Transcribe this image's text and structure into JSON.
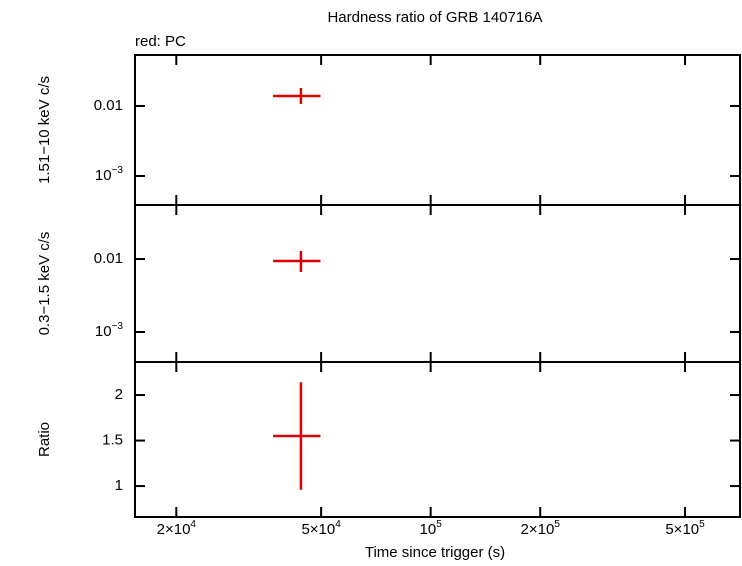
{
  "chart_data": [
    {
      "type": "errorbar",
      "title": "Hardness ratio of GRB 140716A",
      "annotation": "red: PC",
      "ylabel": "1.51−10 keV c/s",
      "yscale": "log",
      "ylim": [
        0.000385,
        0.0535
      ],
      "yticks": [
        {
          "value": 0.01,
          "label": "0.01"
        },
        {
          "value": 0.001,
          "label": "10",
          "exponent": "−3"
        }
      ],
      "series": [
        {
          "color": "#e00000",
          "x": [
            44000
          ],
          "x_low": [
            36900
          ],
          "x_high": [
            49800
          ],
          "values": [
            0.0139
          ],
          "y_low": [
            0.0107
          ],
          "y_high": [
            0.0181
          ]
        }
      ]
    },
    {
      "type": "errorbar",
      "ylabel": "0.3−1.5 keV c/s",
      "yscale": "log",
      "ylim": [
        0.000388,
        0.055
      ],
      "yticks": [
        {
          "value": 0.01,
          "label": "0.01"
        },
        {
          "value": 0.001,
          "label": "10",
          "exponent": "−3"
        }
      ],
      "series": [
        {
          "color": "#e00000",
          "x": [
            44000
          ],
          "x_low": [
            36900
          ],
          "x_high": [
            49800
          ],
          "values": [
            0.0094
          ],
          "y_low": [
            0.00664
          ],
          "y_high": [
            0.0129
          ]
        }
      ]
    },
    {
      "type": "errorbar",
      "ylabel": "Ratio",
      "yscale": "linear",
      "ylim": [
        0.66,
        2.363
      ],
      "yticks": [
        2,
        1.5,
        1
      ],
      "xlabel": "Time since trigger (s)",
      "xscale": "log",
      "xlim": [
        15400,
        708000
      ],
      "xticks": [
        {
          "value": 20000,
          "label": "2×10",
          "exponent": "4"
        },
        {
          "value": 50000,
          "label": "5×10",
          "exponent": "4"
        },
        {
          "value": 100000,
          "label": "10",
          "exponent": "5"
        },
        {
          "value": 200000,
          "label": "2×10",
          "exponent": "5"
        },
        {
          "value": 500000,
          "label": "5×10",
          "exponent": "5"
        }
      ],
      "series": [
        {
          "color": "#e00000",
          "x": [
            44000
          ],
          "x_low": [
            36900
          ],
          "x_high": [
            49800
          ],
          "values": [
            1.55
          ],
          "y_low": [
            0.96
          ],
          "y_high": [
            2.14
          ]
        }
      ]
    }
  ]
}
